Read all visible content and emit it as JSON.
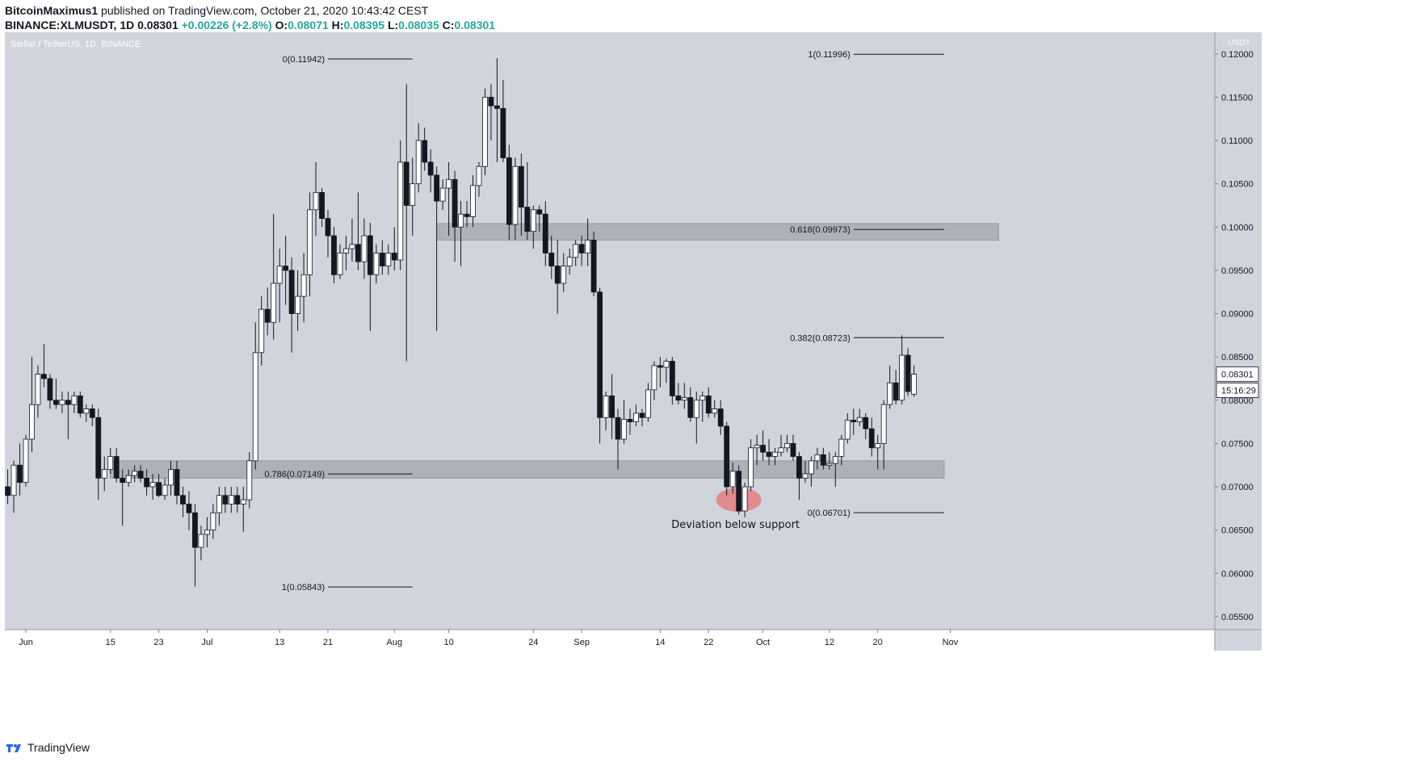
{
  "header": {
    "author": "BitcoinMaximus1",
    "published_text": "published on TradingView.com, October 21, 2020 10:43:42 CEST",
    "symbol": "BINANCE:XLMUSDT, 1D",
    "last": "0.08301",
    "change": "+0.00226 (+2.8%)",
    "o_label": "O:",
    "o": "0.08071",
    "h_label": "H:",
    "h": "0.08395",
    "l_label": "L:",
    "l": "0.08035",
    "c_label": "C:",
    "c": "0.08301"
  },
  "footer": {
    "brand": "TradingView"
  },
  "colors": {
    "plot_bg": "#d1d4dc",
    "candle_up_fill": "#ffffff",
    "candle_down_fill": "#131722",
    "zone": "#a3a6af",
    "annotation": "#e57373",
    "value_up": "#26a69a"
  },
  "chart_data": {
    "type": "candlestick",
    "title": "Stellar / TetherUS, 1D, BINANCE",
    "currency_label": "USDT",
    "y_range": [
      0.0535,
      0.1225
    ],
    "y_ticks": [
      "0.12000",
      "0.11500",
      "0.11000",
      "0.10500",
      "0.10000",
      "0.09500",
      "0.09000",
      "0.08500",
      "0.08000",
      "0.07500",
      "0.07000",
      "0.06500",
      "0.06000",
      "0.05500"
    ],
    "x_ticks": [
      {
        "label": "Jun",
        "date": "2020-06-01"
      },
      {
        "label": "15",
        "date": "2020-06-15"
      },
      {
        "label": "23",
        "date": "2020-06-23"
      },
      {
        "label": "Jul",
        "date": "2020-07-01"
      },
      {
        "label": "13",
        "date": "2020-07-13"
      },
      {
        "label": "21",
        "date": "2020-07-21"
      },
      {
        "label": "Aug",
        "date": "2020-08-01"
      },
      {
        "label": "10",
        "date": "2020-08-10"
      },
      {
        "label": "24",
        "date": "2020-08-24"
      },
      {
        "label": "Sep",
        "date": "2020-09-01"
      },
      {
        "label": "14",
        "date": "2020-09-14"
      },
      {
        "label": "22",
        "date": "2020-09-22"
      },
      {
        "label": "Oct",
        "date": "2020-10-01"
      },
      {
        "label": "12",
        "date": "2020-10-12"
      },
      {
        "label": "20",
        "date": "2020-10-20"
      },
      {
        "label": "Nov",
        "date": "2020-11-01"
      }
    ],
    "price_label": "0.08301",
    "countdown_label": "15:16:29",
    "ohlc": [
      [
        "2020-05-29",
        0.07,
        0.072,
        0.068,
        0.069
      ],
      [
        "2020-05-30",
        0.069,
        0.073,
        0.067,
        0.0725
      ],
      [
        "2020-05-31",
        0.0725,
        0.075,
        0.069,
        0.0705
      ],
      [
        "2020-06-01",
        0.0705,
        0.076,
        0.07,
        0.0755
      ],
      [
        "2020-06-02",
        0.0755,
        0.085,
        0.074,
        0.0795
      ],
      [
        "2020-06-03",
        0.0795,
        0.084,
        0.078,
        0.083
      ],
      [
        "2020-06-04",
        0.083,
        0.0865,
        0.0815,
        0.0825
      ],
      [
        "2020-06-05",
        0.0825,
        0.083,
        0.079,
        0.08
      ],
      [
        "2020-06-06",
        0.08,
        0.0825,
        0.079,
        0.0795
      ],
      [
        "2020-06-07",
        0.0795,
        0.081,
        0.0785,
        0.08
      ],
      [
        "2020-06-08",
        0.08,
        0.081,
        0.0755,
        0.0795
      ],
      [
        "2020-06-09",
        0.0795,
        0.081,
        0.0785,
        0.0805
      ],
      [
        "2020-06-10",
        0.0805,
        0.081,
        0.078,
        0.0785
      ],
      [
        "2020-06-11",
        0.0785,
        0.0795,
        0.0775,
        0.079
      ],
      [
        "2020-06-12",
        0.079,
        0.0795,
        0.077,
        0.078
      ],
      [
        "2020-06-13",
        0.078,
        0.079,
        0.0685,
        0.071
      ],
      [
        "2020-06-14",
        0.071,
        0.0735,
        0.0695,
        0.072
      ],
      [
        "2020-06-15",
        0.072,
        0.0745,
        0.0715,
        0.0735
      ],
      [
        "2020-06-16",
        0.0735,
        0.0745,
        0.0705,
        0.071
      ],
      [
        "2020-06-17",
        0.071,
        0.072,
        0.0655,
        0.0705
      ],
      [
        "2020-06-18",
        0.0705,
        0.072,
        0.07,
        0.0713
      ],
      [
        "2020-06-19",
        0.0713,
        0.0725,
        0.0705,
        0.0718
      ],
      [
        "2020-06-20",
        0.0718,
        0.0725,
        0.0705,
        0.071
      ],
      [
        "2020-06-21",
        0.071,
        0.072,
        0.069,
        0.07
      ],
      [
        "2020-06-22",
        0.07,
        0.0715,
        0.0685,
        0.0705
      ],
      [
        "2020-06-23",
        0.0705,
        0.0715,
        0.0688,
        0.069
      ],
      [
        "2020-06-24",
        0.069,
        0.071,
        0.0685,
        0.0702
      ],
      [
        "2020-06-25",
        0.0702,
        0.073,
        0.069,
        0.072
      ],
      [
        "2020-06-26",
        0.072,
        0.073,
        0.068,
        0.069
      ],
      [
        "2020-06-27",
        0.069,
        0.07,
        0.0665,
        0.068
      ],
      [
        "2020-06-28",
        0.068,
        0.0695,
        0.065,
        0.067
      ],
      [
        "2020-06-29",
        0.067,
        0.068,
        0.0585,
        0.063
      ],
      [
        "2020-06-30",
        0.063,
        0.0655,
        0.0615,
        0.0645
      ],
      [
        "2020-07-01",
        0.0645,
        0.0665,
        0.063,
        0.065
      ],
      [
        "2020-07-02",
        0.065,
        0.068,
        0.064,
        0.067
      ],
      [
        "2020-07-03",
        0.067,
        0.07,
        0.0655,
        0.069
      ],
      [
        "2020-07-04",
        0.069,
        0.07,
        0.067,
        0.068
      ],
      [
        "2020-07-05",
        0.068,
        0.07,
        0.067,
        0.069
      ],
      [
        "2020-07-06",
        0.069,
        0.07,
        0.067,
        0.068
      ],
      [
        "2020-07-07",
        0.068,
        0.07,
        0.0648,
        0.0685
      ],
      [
        "2020-07-08",
        0.0685,
        0.074,
        0.0675,
        0.073
      ],
      [
        "2020-07-09",
        0.073,
        0.089,
        0.072,
        0.0855
      ],
      [
        "2020-07-10",
        0.0855,
        0.092,
        0.084,
        0.0905
      ],
      [
        "2020-07-11",
        0.0905,
        0.093,
        0.0875,
        0.089
      ],
      [
        "2020-07-12",
        0.089,
        0.1015,
        0.087,
        0.0935
      ],
      [
        "2020-07-13",
        0.0935,
        0.0975,
        0.089,
        0.0955
      ],
      [
        "2020-07-14",
        0.0955,
        0.099,
        0.091,
        0.095
      ],
      [
        "2020-07-15",
        0.095,
        0.0965,
        0.0855,
        0.09
      ],
      [
        "2020-07-16",
        0.09,
        0.095,
        0.088,
        0.092
      ],
      [
        "2020-07-17",
        0.092,
        0.097,
        0.089,
        0.0945
      ],
      [
        "2020-07-18",
        0.0945,
        0.104,
        0.092,
        0.102
      ],
      [
        "2020-07-19",
        0.102,
        0.1075,
        0.099,
        0.104
      ],
      [
        "2020-07-20",
        0.104,
        0.1045,
        0.1,
        0.101
      ],
      [
        "2020-07-21",
        0.101,
        0.102,
        0.0965,
        0.099
      ],
      [
        "2020-07-22",
        0.099,
        0.1,
        0.0935,
        0.0945
      ],
      [
        "2020-07-23",
        0.0945,
        0.098,
        0.094,
        0.097
      ],
      [
        "2020-07-24",
        0.097,
        0.099,
        0.095,
        0.0975
      ],
      [
        "2020-07-25",
        0.0975,
        0.101,
        0.096,
        0.098
      ],
      [
        "2020-07-26",
        0.098,
        0.104,
        0.095,
        0.096
      ],
      [
        "2020-07-27",
        0.096,
        0.101,
        0.094,
        0.099
      ],
      [
        "2020-07-28",
        0.099,
        0.1005,
        0.088,
        0.0945
      ],
      [
        "2020-07-29",
        0.0945,
        0.098,
        0.0935,
        0.097
      ],
      [
        "2020-07-30",
        0.097,
        0.0985,
        0.0945,
        0.0955
      ],
      [
        "2020-07-31",
        0.0955,
        0.098,
        0.0945,
        0.097
      ],
      [
        "2020-08-01",
        0.097,
        0.1,
        0.095,
        0.0962
      ],
      [
        "2020-08-02",
        0.0962,
        0.11,
        0.095,
        0.1075
      ],
      [
        "2020-08-03",
        0.1075,
        0.1165,
        0.0845,
        0.1025
      ],
      [
        "2020-08-04",
        0.1025,
        0.108,
        0.099,
        0.105
      ],
      [
        "2020-08-05",
        0.105,
        0.112,
        0.104,
        0.11
      ],
      [
        "2020-08-06",
        0.11,
        0.1115,
        0.1065,
        0.1075
      ],
      [
        "2020-08-07",
        0.1075,
        0.109,
        0.104,
        0.106
      ],
      [
        "2020-08-08",
        0.106,
        0.107,
        0.088,
        0.103
      ],
      [
        "2020-08-09",
        0.103,
        0.1055,
        0.102,
        0.1045
      ],
      [
        "2020-08-10",
        0.1045,
        0.1075,
        0.099,
        0.1055
      ],
      [
        "2020-08-11",
        0.1055,
        0.1065,
        0.096,
        0.1
      ],
      [
        "2020-08-12",
        0.1,
        0.103,
        0.0955,
        0.1015
      ],
      [
        "2020-08-13",
        0.1015,
        0.103,
        0.1,
        0.1012
      ],
      [
        "2020-08-14",
        0.1012,
        0.106,
        0.1,
        0.1048
      ],
      [
        "2020-08-15",
        0.1048,
        0.1075,
        0.1035,
        0.107
      ],
      [
        "2020-08-16",
        0.107,
        0.116,
        0.106,
        0.115
      ],
      [
        "2020-08-17",
        0.115,
        0.1165,
        0.11,
        0.114
      ],
      [
        "2020-08-18",
        0.114,
        0.1195,
        0.1075,
        0.1137
      ],
      [
        "2020-08-19",
        0.1137,
        0.117,
        0.1075,
        0.108
      ],
      [
        "2020-08-20",
        0.108,
        0.1095,
        0.0985,
        0.1003
      ],
      [
        "2020-08-21",
        0.1003,
        0.108,
        0.0985,
        0.107
      ],
      [
        "2020-08-22",
        0.107,
        0.1085,
        0.099,
        0.1023
      ],
      [
        "2020-08-23",
        0.1023,
        0.1075,
        0.0985,
        0.0995
      ],
      [
        "2020-08-24",
        0.0995,
        0.1025,
        0.0975,
        0.102
      ],
      [
        "2020-08-25",
        0.102,
        0.1025,
        0.0995,
        0.1015
      ],
      [
        "2020-08-26",
        0.1015,
        0.103,
        0.0955,
        0.097
      ],
      [
        "2020-08-27",
        0.097,
        0.099,
        0.094,
        0.0955
      ],
      [
        "2020-08-28",
        0.0955,
        0.0985,
        0.09,
        0.0935
      ],
      [
        "2020-08-29",
        0.0935,
        0.097,
        0.0925,
        0.0955
      ],
      [
        "2020-08-30",
        0.0955,
        0.0975,
        0.0945,
        0.0965
      ],
      [
        "2020-08-31",
        0.0965,
        0.0985,
        0.0955,
        0.098
      ],
      [
        "2020-09-01",
        0.098,
        0.099,
        0.0955,
        0.097
      ],
      [
        "2020-09-02",
        0.097,
        0.101,
        0.0955,
        0.0985
      ],
      [
        "2020-09-03",
        0.0985,
        0.0995,
        0.092,
        0.0925
      ],
      [
        "2020-09-04",
        0.0925,
        0.093,
        0.075,
        0.078
      ],
      [
        "2020-09-05",
        0.078,
        0.081,
        0.0765,
        0.0805
      ],
      [
        "2020-09-06",
        0.0805,
        0.083,
        0.0755,
        0.078
      ],
      [
        "2020-09-07",
        0.078,
        0.079,
        0.072,
        0.0755
      ],
      [
        "2020-09-08",
        0.0755,
        0.08,
        0.075,
        0.0778
      ],
      [
        "2020-09-09",
        0.0778,
        0.079,
        0.076,
        0.0775
      ],
      [
        "2020-09-10",
        0.0775,
        0.0795,
        0.077,
        0.0785
      ],
      [
        "2020-09-11",
        0.0785,
        0.079,
        0.077,
        0.078
      ],
      [
        "2020-09-12",
        0.078,
        0.082,
        0.0775,
        0.0812
      ],
      [
        "2020-09-13",
        0.0812,
        0.0845,
        0.08,
        0.084
      ],
      [
        "2020-09-14",
        0.084,
        0.085,
        0.0815,
        0.0838
      ],
      [
        "2020-09-15",
        0.0838,
        0.0848,
        0.082,
        0.0845
      ],
      [
        "2020-09-16",
        0.0845,
        0.085,
        0.0795,
        0.0805
      ],
      [
        "2020-09-17",
        0.0805,
        0.082,
        0.0795,
        0.08
      ],
      [
        "2020-09-18",
        0.08,
        0.082,
        0.079,
        0.0803
      ],
      [
        "2020-09-19",
        0.0803,
        0.0815,
        0.0775,
        0.078
      ],
      [
        "2020-09-20",
        0.078,
        0.081,
        0.075,
        0.08
      ],
      [
        "2020-09-21",
        0.08,
        0.081,
        0.0775,
        0.0805
      ],
      [
        "2020-09-22",
        0.0805,
        0.0815,
        0.078,
        0.0785
      ],
      [
        "2020-09-23",
        0.0785,
        0.08,
        0.078,
        0.079
      ],
      [
        "2020-09-24",
        0.079,
        0.08,
        0.076,
        0.077
      ],
      [
        "2020-09-25",
        0.077,
        0.0775,
        0.069,
        0.07
      ],
      [
        "2020-09-26",
        0.07,
        0.0728,
        0.0692,
        0.0718
      ],
      [
        "2020-09-27",
        0.0718,
        0.0725,
        0.0668,
        0.0672
      ],
      [
        "2020-09-28",
        0.0672,
        0.0705,
        0.0665,
        0.07
      ],
      [
        "2020-09-29",
        0.07,
        0.0755,
        0.0695,
        0.0745
      ],
      [
        "2020-09-30",
        0.0745,
        0.076,
        0.0725,
        0.0748
      ],
      [
        "2020-10-01",
        0.0748,
        0.0765,
        0.073,
        0.074
      ],
      [
        "2020-10-02",
        0.074,
        0.0755,
        0.0725,
        0.0735
      ],
      [
        "2020-10-03",
        0.0735,
        0.0745,
        0.0725,
        0.074
      ],
      [
        "2020-10-04",
        0.074,
        0.076,
        0.0735,
        0.0745
      ],
      [
        "2020-10-05",
        0.0745,
        0.076,
        0.074,
        0.075
      ],
      [
        "2020-10-06",
        0.075,
        0.076,
        0.073,
        0.0735
      ],
      [
        "2020-10-07",
        0.0735,
        0.074,
        0.0685,
        0.071
      ],
      [
        "2020-10-08",
        0.071,
        0.073,
        0.0705,
        0.0715
      ],
      [
        "2020-10-09",
        0.0715,
        0.0735,
        0.07,
        0.073
      ],
      [
        "2020-10-10",
        0.073,
        0.0745,
        0.072,
        0.0737
      ],
      [
        "2020-10-11",
        0.0737,
        0.0745,
        0.072,
        0.0725
      ],
      [
        "2020-10-12",
        0.0725,
        0.074,
        0.072,
        0.0727
      ],
      [
        "2020-10-13",
        0.0727,
        0.074,
        0.07,
        0.0735
      ],
      [
        "2020-10-14",
        0.0735,
        0.076,
        0.0725,
        0.0755
      ],
      [
        "2020-10-15",
        0.0755,
        0.0785,
        0.075,
        0.0777
      ],
      [
        "2020-10-16",
        0.0777,
        0.079,
        0.076,
        0.0775
      ],
      [
        "2020-10-17",
        0.0775,
        0.079,
        0.077,
        0.078
      ],
      [
        "2020-10-18",
        0.078,
        0.0785,
        0.0755,
        0.0767
      ],
      [
        "2020-10-19",
        0.0767,
        0.078,
        0.0735,
        0.0745
      ],
      [
        "2020-10-20",
        0.0745,
        0.076,
        0.072,
        0.075
      ],
      [
        "2020-10-21",
        0.075,
        0.08,
        0.072,
        0.0795
      ],
      [
        "2020-10-22",
        0.0795,
        0.084,
        0.079,
        0.082
      ],
      [
        "2020-10-23",
        0.082,
        0.0835,
        0.0795,
        0.08
      ],
      [
        "2020-10-24",
        0.08,
        0.0875,
        0.0795,
        0.0852
      ],
      [
        "2020-10-25",
        0.0852,
        0.086,
        0.0805,
        0.081
      ],
      [
        "2020-10-26",
        0.0807,
        0.084,
        0.0804,
        0.083
      ]
    ],
    "zones": [
      {
        "from": "2020-08-08",
        "to": "2020-11-09",
        "low": 0.0985,
        "high": 0.1004
      },
      {
        "from": "2020-06-15",
        "to": "2020-10-31",
        "low": 0.071,
        "high": 0.073
      }
    ],
    "fib_levels": [
      {
        "label": "0(0.11942)",
        "value": 0.11942,
        "from": "2020-07-21",
        "to": "2020-08-04"
      },
      {
        "label": "0.786(0.07149)",
        "value": 0.07149,
        "from": "2020-07-21",
        "to": "2020-08-04"
      },
      {
        "label": "1(0.05843)",
        "value": 0.05843,
        "from": "2020-07-21",
        "to": "2020-08-04"
      },
      {
        "label": "1(0.11996)",
        "value": 0.11996,
        "from": "2020-10-16",
        "to": "2020-10-31"
      },
      {
        "label": "0.618(0.09973)",
        "value": 0.09973,
        "from": "2020-10-16",
        "to": "2020-10-31"
      },
      {
        "label": "0.382(0.08723)",
        "value": 0.08723,
        "from": "2020-10-16",
        "to": "2020-10-31"
      },
      {
        "label": "0(0.06701)",
        "value": 0.06701,
        "from": "2020-10-16",
        "to": "2020-10-31"
      }
    ],
    "annotation": {
      "text": "Deviation below support",
      "date": "2020-09-27",
      "value": 0.0685
    }
  }
}
